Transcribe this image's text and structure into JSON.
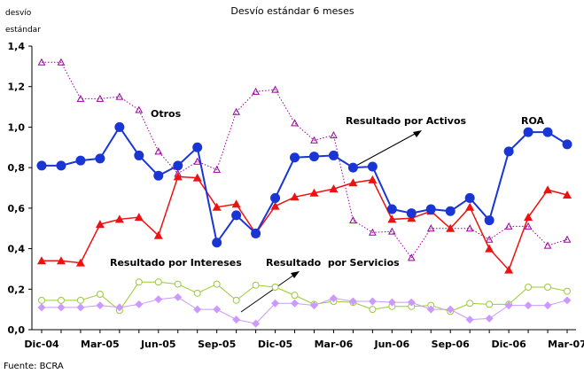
{
  "chart_data": {
    "type": "line",
    "title": "Desvío estándar 6 meses",
    "ylabel_lines": [
      "desvío",
      "estándar"
    ],
    "source": "Fuente: BCRA",
    "categories": [
      "Dic-04",
      null,
      null,
      "Mar-05",
      null,
      null,
      "Jun-05",
      null,
      null,
      "Sep-05",
      null,
      null,
      "Dic-05",
      null,
      null,
      "Mar-06",
      null,
      null,
      "Jun-06",
      null,
      null,
      "Sep-06",
      null,
      null,
      "Dic-06",
      null,
      null,
      "Mar-07"
    ],
    "ylim": [
      0,
      1.4
    ],
    "yticks": [
      {
        "value": 0,
        "label": "0,0"
      },
      {
        "value": 0.2,
        "label": "0,2"
      },
      {
        "value": 0.4,
        "label": "0,4"
      },
      {
        "value": 0.6,
        "label": "0,6"
      },
      {
        "value": 0.8,
        "label": "0,8"
      },
      {
        "value": 1.0,
        "label": "1,0"
      },
      {
        "value": 1.2,
        "label": "1,2"
      },
      {
        "value": 1.4,
        "label": "1,4"
      }
    ],
    "series": [
      {
        "name": "Otros",
        "color": "#990099",
        "marker": "open-triangle",
        "dashed": true,
        "values": [
          1.32,
          1.32,
          1.14,
          1.14,
          1.15,
          1.085,
          0.88,
          0.77,
          0.83,
          0.79,
          1.075,
          1.175,
          1.185,
          1.02,
          0.935,
          0.96,
          0.54,
          0.48,
          0.485,
          0.355,
          0.5,
          0.5,
          0.5,
          0.445,
          0.51,
          0.51,
          0.415,
          0.445
        ]
      },
      {
        "name": "Resultado por Intereses",
        "color": "#99cc33",
        "marker": "open-circle",
        "dashed": false,
        "values": [
          0.145,
          0.145,
          0.145,
          0.175,
          0.095,
          0.235,
          0.235,
          0.225,
          0.18,
          0.225,
          0.145,
          0.22,
          0.21,
          0.17,
          0.125,
          0.14,
          0.135,
          0.1,
          0.115,
          0.115,
          0.12,
          0.09,
          0.13,
          0.125,
          0.125,
          0.21,
          0.21,
          0.19
        ]
      },
      {
        "name": "Resultado  por Servicios",
        "color": "#cc99ff",
        "marker": "diamond",
        "dashed": false,
        "values": [
          0.11,
          0.11,
          0.11,
          0.12,
          0.11,
          0.125,
          0.15,
          0.16,
          0.1,
          0.1,
          0.05,
          0.03,
          0.13,
          0.13,
          0.12,
          0.155,
          0.14,
          0.14,
          0.135,
          0.135,
          0.1,
          0.1,
          0.05,
          0.055,
          0.12,
          0.12,
          0.12,
          0.145
        ]
      },
      {
        "name": "Resultado por Activos",
        "color": "#ee1111",
        "marker": "triangle",
        "dashed": false,
        "values": [
          0.34,
          0.34,
          0.33,
          0.52,
          0.545,
          0.555,
          0.465,
          0.755,
          0.75,
          0.605,
          0.62,
          0.475,
          0.61,
          0.655,
          0.675,
          0.695,
          0.725,
          0.74,
          0.545,
          0.55,
          0.585,
          0.5,
          0.605,
          0.4,
          0.295,
          0.555,
          0.69,
          0.665
        ]
      },
      {
        "name": "ROA",
        "color": "#1a35d6",
        "marker": "circle",
        "dashed": false,
        "values": [
          0.81,
          0.81,
          0.835,
          0.845,
          1.0,
          0.86,
          0.76,
          0.81,
          0.9,
          0.43,
          0.565,
          0.475,
          0.65,
          0.85,
          0.855,
          0.86,
          0.8,
          0.805,
          0.595,
          0.575,
          0.595,
          0.585,
          0.65,
          0.54,
          0.88,
          0.975,
          0.975,
          0.915
        ]
      }
    ]
  }
}
